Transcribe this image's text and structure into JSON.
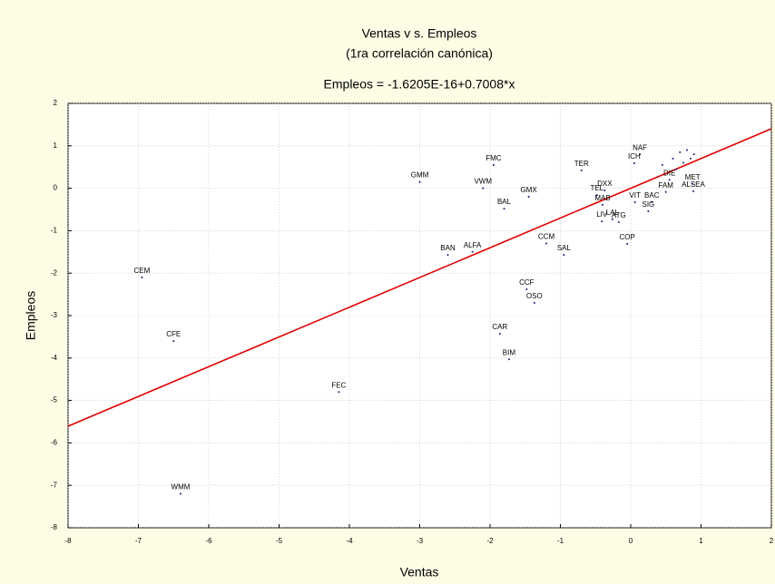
{
  "chart_data": {
    "type": "scatter",
    "title": "Ventas v s.  Empleos",
    "subtitle": "(1ra correlación canónica)",
    "equation": "Empleos = -1.6205E-16+0.7008*x",
    "x_label": "Ventas",
    "y_label": "Empleos",
    "fit": {
      "intercept": -1.6205e-16,
      "slope": 0.7008,
      "color": "#e00000"
    },
    "point_color": "#1a1a7a",
    "labels": [
      "CEM",
      "CFE",
      "WMM",
      "FEC",
      "GMM",
      "FMC",
      "VWM",
      "BAL",
      "GMX",
      "BAN",
      "ALFA",
      "CCM",
      "SAL",
      "CCF",
      "OSO",
      "CAR",
      "BIM",
      "TER",
      "TEL",
      "DXX",
      "MAB",
      "LIV",
      "LAL",
      "ATG",
      "COP",
      "VIT",
      "BAC",
      "SIG",
      "FAM",
      "ALSEA",
      "MET",
      "NAF",
      "ICH",
      "DIE",
      null,
      null,
      null,
      null,
      null,
      null,
      null,
      null
    ],
    "x": [
      -6.95,
      -6.5,
      -6.4,
      -4.15,
      -3.0,
      -1.95,
      -2.1,
      -1.8,
      -1.45,
      -2.6,
      -2.25,
      -1.2,
      -0.95,
      -1.48,
      -1.37,
      -1.86,
      -1.73,
      -0.7,
      -0.48,
      -0.37,
      -0.4,
      -0.41,
      -0.26,
      -0.17,
      -0.05,
      0.06,
      0.3,
      0.25,
      0.5,
      0.89,
      0.88,
      0.13,
      0.05,
      0.55,
      0.6,
      0.7,
      0.8,
      0.9,
      0.75,
      0.65,
      0.85,
      0.45
    ],
    "y": [
      -2.1,
      -3.6,
      -7.2,
      -4.8,
      0.15,
      0.55,
      0.0,
      -0.48,
      -0.2,
      -1.57,
      -1.5,
      -1.3,
      -1.57,
      -2.38,
      -2.7,
      -3.43,
      -4.03,
      0.42,
      -0.16,
      -0.05,
      -0.39,
      -0.78,
      -0.73,
      -0.8,
      -1.31,
      -0.33,
      -0.33,
      -0.54,
      -0.09,
      -0.07,
      0.1,
      0.8,
      0.59,
      0.2,
      0.7,
      0.85,
      0.9,
      0.8,
      0.6,
      0.45,
      0.7,
      0.55
    ],
    "xlim": [
      -8,
      2
    ],
    "ylim": [
      -8,
      2
    ],
    "xticks": [
      -8,
      -7,
      -6,
      -5,
      -4,
      -3,
      -2,
      -1,
      0,
      1,
      2
    ],
    "yticks": [
      -8,
      -7,
      -6,
      -5,
      -4,
      -3,
      -2,
      -1,
      0,
      1,
      2
    ],
    "grid": true
  }
}
